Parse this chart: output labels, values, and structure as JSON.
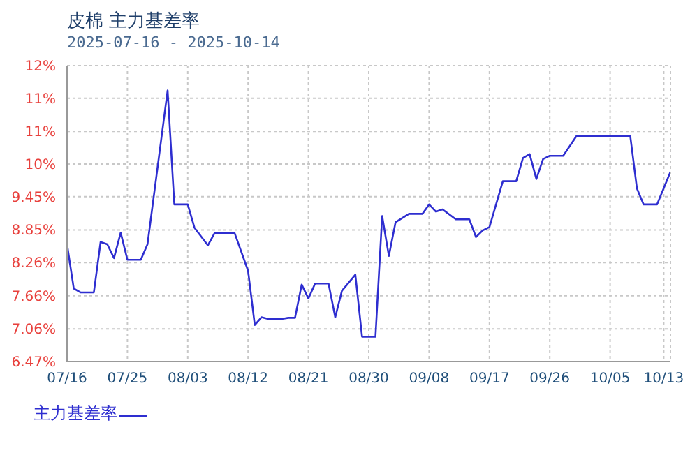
{
  "chart_data": {
    "type": "line",
    "title": "皮棉 主力基差率",
    "subtitle": "2025-07-16 - 2025-10-14",
    "x": [
      "2025-07-16",
      "2025-07-17",
      "2025-07-18",
      "2025-07-20",
      "2025-07-21",
      "2025-07-22",
      "2025-07-23",
      "2025-07-24",
      "2025-07-25",
      "2025-07-27",
      "2025-07-28",
      "2025-07-31",
      "2025-08-01",
      "2025-08-03",
      "2025-08-04",
      "2025-08-06",
      "2025-08-07",
      "2025-08-10",
      "2025-08-12",
      "2025-08-13",
      "2025-08-14",
      "2025-08-15",
      "2025-08-17",
      "2025-08-18",
      "2025-08-19",
      "2025-08-20",
      "2025-08-21",
      "2025-08-22",
      "2025-08-24",
      "2025-08-25",
      "2025-08-26",
      "2025-08-28",
      "2025-08-29",
      "2025-08-31",
      "2025-09-01",
      "2025-09-02",
      "2025-09-03",
      "2025-09-05",
      "2025-09-07",
      "2025-09-08",
      "2025-09-09",
      "2025-09-10",
      "2025-09-12",
      "2025-09-14",
      "2025-09-15",
      "2025-09-16",
      "2025-09-17",
      "2025-09-19",
      "2025-09-21",
      "2025-09-22",
      "2025-09-23",
      "2025-09-24",
      "2025-09-25",
      "2025-09-26",
      "2025-09-28",
      "2025-09-30",
      "2025-10-08",
      "2025-10-09",
      "2025-10-10",
      "2025-10-12",
      "2025-10-14"
    ],
    "series": [
      {
        "name": "主力基差率",
        "color": "#2e2ed0",
        "values": [
          8.59,
          7.79,
          7.72,
          7.72,
          8.63,
          8.59,
          8.34,
          8.8,
          8.31,
          8.31,
          8.59,
          11.37,
          9.31,
          9.31,
          8.89,
          8.57,
          8.79,
          8.79,
          8.11,
          7.13,
          7.27,
          7.24,
          7.24,
          7.26,
          7.26,
          7.86,
          7.61,
          7.88,
          7.88,
          7.27,
          7.75,
          8.04,
          6.92,
          6.92,
          9.1,
          8.38,
          8.99,
          9.14,
          9.14,
          9.31,
          9.18,
          9.22,
          9.04,
          9.04,
          8.72,
          8.84,
          8.9,
          9.73,
          9.73,
          10.15,
          10.22,
          9.77,
          10.13,
          10.19,
          10.19,
          10.55,
          10.55,
          9.6,
          9.31,
          9.31,
          9.9
        ]
      }
    ],
    "xlim": [
      "2025-07-16",
      "2025-10-14"
    ],
    "xticks": [
      {
        "value": "2025-07-16",
        "label": "07/16"
      },
      {
        "value": "2025-07-25",
        "label": "07/25"
      },
      {
        "value": "2025-08-03",
        "label": "08/03"
      },
      {
        "value": "2025-08-12",
        "label": "08/12"
      },
      {
        "value": "2025-08-21",
        "label": "08/21"
      },
      {
        "value": "2025-08-30",
        "label": "08/30"
      },
      {
        "value": "2025-09-08",
        "label": "09/08"
      },
      {
        "value": "2025-09-17",
        "label": "09/17"
      },
      {
        "value": "2025-09-26",
        "label": "09/26"
      },
      {
        "value": "2025-10-05",
        "label": "10/05"
      },
      {
        "value": "2025-10-13",
        "label": "10/13"
      }
    ],
    "ylim": [
      6.47,
      11.82
    ],
    "yticks": [
      {
        "value": 6.47,
        "label": "6.47%"
      },
      {
        "value": 7.06,
        "label": "7.06%"
      },
      {
        "value": 7.66,
        "label": "7.66%"
      },
      {
        "value": 8.26,
        "label": "8.26%"
      },
      {
        "value": 8.85,
        "label": "8.85%"
      },
      {
        "value": 9.45,
        "label": "9.45%"
      },
      {
        "value": 10.04,
        "label": "10%"
      },
      {
        "value": 10.63,
        "label": "11%"
      },
      {
        "value": 11.23,
        "label": "11%"
      },
      {
        "value": 11.82,
        "label": "12%"
      }
    ],
    "grid": true,
    "legend": "bottom left",
    "marker": "none",
    "line_style": "solid"
  }
}
